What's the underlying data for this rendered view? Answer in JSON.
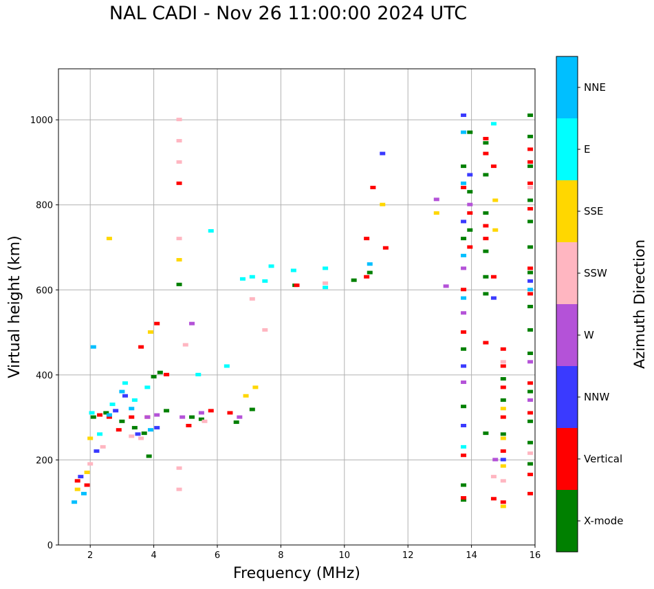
{
  "chart_data": {
    "type": "scatter",
    "title": "NAL CADI - Nov 26 11:00:00 2024 UTC",
    "xlabel": "Frequency (MHz)",
    "ylabel": "Virtual height (km)",
    "xlim": [
      1,
      16
    ],
    "ylim": [
      0,
      1120
    ],
    "xticks": [
      2,
      4,
      6,
      8,
      10,
      12,
      14,
      16
    ],
    "yticks": [
      0,
      200,
      400,
      600,
      800,
      1000
    ],
    "grid": true,
    "colorbar": {
      "label": "Azimuth Direction",
      "categories": [
        {
          "name": "X-mode",
          "color": "#008000"
        },
        {
          "name": "Vertical",
          "color": "#ff0000"
        },
        {
          "name": "NNW",
          "color": "#3a3aff"
        },
        {
          "name": "W",
          "color": "#b452d8"
        },
        {
          "name": "SSW",
          "color": "#ffb6c1"
        },
        {
          "name": "SSE",
          "color": "#ffd700"
        },
        {
          "name": "E",
          "color": "#00ffff"
        },
        {
          "name": "NNE",
          "color": "#00bfff"
        }
      ]
    },
    "series": [
      {
        "name": "X-mode",
        "points": [
          [
            2.1,
            300
          ],
          [
            2.5,
            310
          ],
          [
            3.0,
            290
          ],
          [
            3.4,
            275
          ],
          [
            3.7,
            262
          ],
          [
            4.0,
            395
          ],
          [
            4.2,
            405
          ],
          [
            4.4,
            315
          ],
          [
            5.2,
            300
          ],
          [
            5.5,
            295
          ],
          [
            6.6,
            288
          ],
          [
            7.1,
            318
          ],
          [
            3.85,
            208
          ],
          [
            10.3,
            622
          ],
          [
            10.8,
            640
          ],
          [
            13.75,
            105
          ],
          [
            13.75,
            140
          ],
          [
            13.75,
            325
          ],
          [
            13.75,
            460
          ],
          [
            13.75,
            720
          ],
          [
            13.75,
            890
          ],
          [
            13.95,
            970
          ],
          [
            13.95,
            830
          ],
          [
            13.95,
            740
          ],
          [
            14.45,
            780
          ],
          [
            14.45,
            630
          ],
          [
            14.45,
            590
          ],
          [
            14.45,
            690
          ],
          [
            14.45,
            945
          ],
          [
            14.45,
            870
          ],
          [
            14.45,
            262
          ],
          [
            15.0,
            390
          ],
          [
            15.0,
            340
          ],
          [
            15.0,
            260
          ],
          [
            15.85,
            1010
          ],
          [
            15.85,
            960
          ],
          [
            15.85,
            890
          ],
          [
            15.85,
            810
          ],
          [
            15.85,
            760
          ],
          [
            15.85,
            700
          ],
          [
            15.85,
            640
          ],
          [
            15.85,
            560
          ],
          [
            15.85,
            505
          ],
          [
            15.85,
            450
          ],
          [
            15.85,
            360
          ],
          [
            15.85,
            290
          ],
          [
            15.85,
            240
          ],
          [
            15.85,
            190
          ],
          [
            8.45,
            610
          ],
          [
            4.8,
            612
          ]
        ]
      },
      {
        "name": "Vertical",
        "points": [
          [
            1.6,
            150
          ],
          [
            1.9,
            140
          ],
          [
            2.3,
            305
          ],
          [
            2.6,
            300
          ],
          [
            2.9,
            270
          ],
          [
            3.3,
            300
          ],
          [
            3.6,
            465
          ],
          [
            3.8,
            300
          ],
          [
            4.1,
            520
          ],
          [
            4.4,
            400
          ],
          [
            5.1,
            280
          ],
          [
            5.8,
            315
          ],
          [
            6.4,
            310
          ],
          [
            4.8,
            850
          ],
          [
            8.5,
            610
          ],
          [
            10.7,
            630
          ],
          [
            10.7,
            720
          ],
          [
            10.9,
            840
          ],
          [
            11.3,
            698
          ],
          [
            13.75,
            110
          ],
          [
            13.75,
            210
          ],
          [
            13.75,
            500
          ],
          [
            13.75,
            600
          ],
          [
            13.75,
            840
          ],
          [
            13.95,
            780
          ],
          [
            13.95,
            700
          ],
          [
            14.45,
            955
          ],
          [
            14.45,
            920
          ],
          [
            14.45,
            750
          ],
          [
            14.45,
            720
          ],
          [
            14.45,
            475
          ],
          [
            14.7,
            630
          ],
          [
            14.7,
            890
          ],
          [
            14.7,
            108
          ],
          [
            15.0,
            460
          ],
          [
            15.0,
            420
          ],
          [
            15.0,
            370
          ],
          [
            15.0,
            300
          ],
          [
            15.0,
            220
          ],
          [
            15.0,
            100
          ],
          [
            15.85,
            930
          ],
          [
            15.85,
            900
          ],
          [
            15.85,
            850
          ],
          [
            15.85,
            790
          ],
          [
            15.85,
            650
          ],
          [
            15.85,
            590
          ],
          [
            15.85,
            380
          ],
          [
            15.85,
            310
          ],
          [
            15.85,
            165
          ],
          [
            15.85,
            120
          ]
        ]
      },
      {
        "name": "NNW",
        "points": [
          [
            1.7,
            160
          ],
          [
            2.2,
            220
          ],
          [
            2.8,
            315
          ],
          [
            3.1,
            350
          ],
          [
            3.5,
            260
          ],
          [
            4.1,
            275
          ],
          [
            11.2,
            920
          ],
          [
            13.75,
            1010
          ],
          [
            13.75,
            760
          ],
          [
            13.75,
            420
          ],
          [
            13.75,
            280
          ],
          [
            13.95,
            870
          ],
          [
            14.7,
            580
          ],
          [
            15.0,
            200
          ],
          [
            15.85,
            620
          ]
        ]
      },
      {
        "name": "W",
        "points": [
          [
            3.8,
            300
          ],
          [
            4.1,
            305
          ],
          [
            4.9,
            300
          ],
          [
            5.5,
            310
          ],
          [
            6.7,
            300
          ],
          [
            5.2,
            520
          ],
          [
            12.9,
            812
          ],
          [
            13.2,
            608
          ],
          [
            13.75,
            650
          ],
          [
            13.75,
            545
          ],
          [
            13.75,
            382
          ],
          [
            13.95,
            800
          ],
          [
            14.75,
            200
          ],
          [
            15.85,
            430
          ],
          [
            15.85,
            340
          ]
        ]
      },
      {
        "name": "SSW",
        "points": [
          [
            2.0,
            190
          ],
          [
            2.4,
            230
          ],
          [
            3.3,
            255
          ],
          [
            3.6,
            250
          ],
          [
            5.0,
            470
          ],
          [
            5.6,
            290
          ],
          [
            4.8,
            1000
          ],
          [
            4.8,
            950
          ],
          [
            4.8,
            900
          ],
          [
            4.8,
            720
          ],
          [
            4.8,
            180
          ],
          [
            4.8,
            130
          ],
          [
            7.5,
            505
          ],
          [
            7.1,
            578
          ],
          [
            9.4,
            615
          ],
          [
            14.7,
            160
          ],
          [
            15.0,
            430
          ],
          [
            15.0,
            150
          ],
          [
            15.85,
            840
          ],
          [
            15.85,
            215
          ]
        ]
      },
      {
        "name": "SSE",
        "points": [
          [
            1.6,
            130
          ],
          [
            1.9,
            170
          ],
          [
            2.0,
            250
          ],
          [
            2.6,
            720
          ],
          [
            3.9,
            500
          ],
          [
            4.8,
            670
          ],
          [
            6.9,
            350
          ],
          [
            7.2,
            370
          ],
          [
            11.2,
            800
          ],
          [
            12.9,
            780
          ],
          [
            14.75,
            740
          ],
          [
            14.75,
            810
          ],
          [
            15.0,
            320
          ],
          [
            15.0,
            250
          ],
          [
            15.0,
            185
          ],
          [
            15.0,
            90
          ]
        ]
      },
      {
        "name": "E",
        "points": [
          [
            2.05,
            310
          ],
          [
            2.3,
            260
          ],
          [
            2.7,
            330
          ],
          [
            3.1,
            380
          ],
          [
            3.4,
            340
          ],
          [
            3.8,
            370
          ],
          [
            5.4,
            400
          ],
          [
            6.3,
            420
          ],
          [
            6.8,
            625
          ],
          [
            7.1,
            630
          ],
          [
            7.5,
            620
          ],
          [
            7.7,
            655
          ],
          [
            8.4,
            645
          ],
          [
            9.4,
            650
          ],
          [
            9.4,
            605
          ],
          [
            5.8,
            738
          ],
          [
            14.7,
            990
          ],
          [
            13.75,
            230
          ]
        ]
      },
      {
        "name": "NNE",
        "points": [
          [
            1.5,
            100
          ],
          [
            1.8,
            120
          ],
          [
            2.1,
            465
          ],
          [
            2.6,
            305
          ],
          [
            3.0,
            360
          ],
          [
            3.3,
            320
          ],
          [
            3.9,
            270
          ],
          [
            10.8,
            660
          ],
          [
            13.75,
            680
          ],
          [
            13.75,
            850
          ],
          [
            13.75,
            970
          ],
          [
            13.75,
            580
          ],
          [
            15.85,
            600
          ]
        ]
      }
    ]
  }
}
